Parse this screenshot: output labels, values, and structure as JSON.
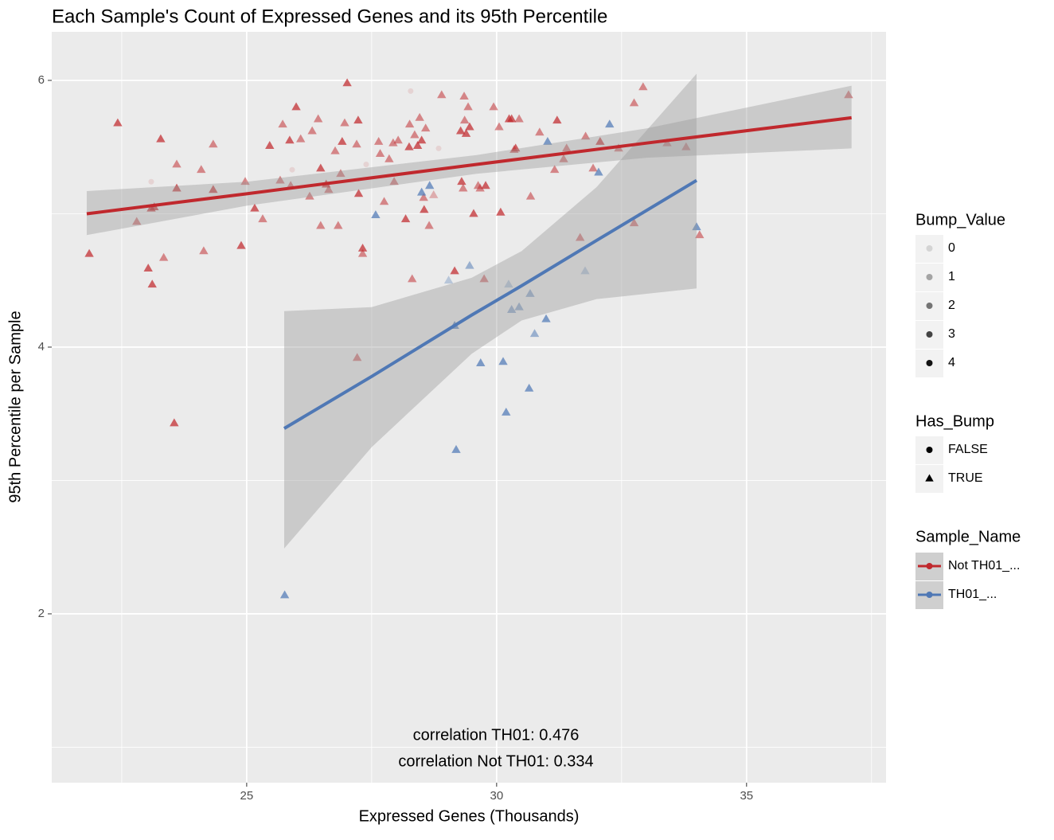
{
  "chart_data": {
    "type": "scatter",
    "title": "Each Sample's Count of Expressed Genes and its 95th Percentile",
    "x_label": "Expressed Genes (Thousands)",
    "y_label": "95th Percentile per Sample",
    "xlim": [
      21.1,
      37.79
    ],
    "ylim": [
      0.734,
      6.364
    ],
    "xticks": [
      25,
      30,
      35
    ],
    "yticks": [
      2,
      4,
      6
    ],
    "x_minor_ticks": [
      22.5,
      27.5,
      32.5,
      37.5
    ],
    "y_minor_ticks": [
      1,
      3,
      5
    ],
    "grid": true,
    "annotations": [
      "correlation TH01: 0.476",
      "correlation Not TH01: 0.334"
    ],
    "legends": [
      {
        "title": "Bump_Value",
        "labels": [
          0,
          1,
          2,
          3,
          4
        ]
      },
      {
        "title": "Has_Bump",
        "labels": [
          "FALSE",
          "TRUE"
        ]
      }
    ],
    "series_legend_title": "Sample_Name",
    "series": [
      {
        "name": "Not TH01_...",
        "color": "#c0282d",
        "x": [
          21.85,
          22.42,
          22.8,
          23.03,
          23.11,
          23.09,
          23.15,
          23.28,
          23.34,
          23.6,
          23.6,
          23.55,
          24.09,
          24.14,
          24.33,
          24.33,
          24.89,
          24.97,
          25.16,
          25.32,
          25.46,
          25.67,
          25.72,
          25.86,
          25.88,
          25.99,
          26.08,
          26.26,
          26.31,
          26.43,
          26.48,
          26.48,
          26.59,
          26.64,
          26.77,
          26.83,
          26.88,
          26.91,
          26.96,
          27.01,
          27.2,
          27.23,
          27.24,
          27.32,
          27.32,
          27.21,
          27.64,
          27.67,
          27.75,
          27.85,
          27.93,
          27.95,
          28.03,
          28.18,
          28.25,
          28.26,
          28.31,
          28.36,
          28.42,
          28.46,
          28.5,
          28.54,
          28.55,
          28.58,
          28.65,
          28.74,
          28.9,
          29.16,
          29.28,
          29.3,
          29.33,
          29.35,
          29.36,
          29.39,
          29.43,
          29.46,
          29.54,
          29.63,
          29.67,
          29.75,
          29.78,
          29.94,
          30.05,
          30.08,
          30.25,
          30.3,
          30.35,
          30.38,
          30.45,
          30.68,
          30.86,
          31.16,
          31.21,
          31.34,
          31.4,
          31.67,
          31.78,
          31.93,
          32.07,
          32.44,
          32.75,
          32.75,
          32.93,
          33.41,
          33.79,
          34.06,
          37.04,
          23.09,
          25.91,
          27.39,
          28.28,
          28.84
        ],
        "values": [
          4.7,
          5.68,
          4.94,
          4.59,
          4.47,
          5.04,
          5.05,
          5.56,
          4.67,
          5.37,
          5.19,
          3.43,
          5.33,
          4.72,
          5.52,
          5.18,
          4.76,
          5.24,
          5.04,
          4.96,
          5.51,
          5.25,
          5.67,
          5.55,
          5.21,
          5.8,
          5.56,
          5.13,
          5.62,
          5.71,
          5.34,
          4.91,
          5.22,
          5.18,
          5.47,
          4.91,
          5.3,
          5.54,
          5.68,
          5.98,
          5.52,
          5.7,
          5.15,
          4.74,
          4.7,
          3.92,
          5.54,
          5.45,
          5.09,
          5.41,
          5.53,
          5.24,
          5.55,
          4.96,
          5.5,
          5.67,
          4.51,
          5.59,
          5.51,
          5.72,
          5.55,
          5.12,
          5.03,
          5.64,
          4.91,
          5.14,
          5.89,
          4.57,
          5.62,
          5.24,
          5.19,
          5.88,
          5.7,
          5.6,
          5.8,
          5.65,
          5.0,
          5.21,
          5.19,
          4.51,
          5.21,
          5.8,
          5.65,
          5.01,
          5.71,
          5.71,
          5.48,
          5.49,
          5.71,
          5.13,
          5.61,
          5.33,
          5.7,
          5.41,
          5.49,
          4.82,
          5.58,
          5.34,
          5.54,
          5.49,
          4.93,
          5.83,
          5.95,
          5.53,
          5.5,
          4.84,
          5.89,
          5.24,
          5.33,
          5.37,
          5.92,
          5.49
        ],
        "bump": [
          3,
          3,
          2,
          3,
          3,
          3,
          3,
          3,
          2,
          2,
          3,
          3,
          2,
          2,
          2,
          3,
          3,
          2,
          3,
          2,
          3,
          2,
          2,
          3,
          2,
          3,
          2,
          2,
          2,
          2,
          3,
          2,
          3,
          2,
          2,
          2,
          2,
          3,
          2,
          3,
          2,
          3,
          3,
          3,
          2,
          2,
          2,
          2,
          2,
          2,
          2,
          2,
          2,
          3,
          3,
          2,
          2,
          2,
          3,
          2,
          3,
          2,
          3,
          2,
          2,
          1,
          2,
          3,
          3,
          3,
          2,
          2,
          2,
          3,
          2,
          3,
          3,
          2,
          2,
          2,
          3,
          2,
          2,
          3,
          3,
          3,
          2,
          3,
          2,
          2,
          2,
          2,
          3,
          2,
          2,
          2,
          2,
          2,
          3,
          2,
          2,
          2,
          2,
          2,
          2,
          2,
          2,
          0,
          0,
          0,
          0,
          0
        ],
        "fit": {
          "x": [
            21.8,
            25,
            29.6,
            33,
            37.1
          ],
          "values": [
            5.0,
            5.15,
            5.37,
            5.53,
            5.72
          ],
          "lower": [
            4.84,
            5.06,
            5.3,
            5.42,
            5.49
          ],
          "upper": [
            5.17,
            5.24,
            5.44,
            5.64,
            5.96
          ]
        }
      },
      {
        "name": "TH01_...",
        "color": "#4f78b5",
        "x": [
          25.76,
          27.58,
          28.5,
          28.66,
          29.04,
          29.16,
          29.19,
          29.46,
          29.68,
          30.13,
          30.19,
          30.24,
          30.3,
          30.45,
          30.65,
          30.67,
          30.76,
          30.99,
          31.02,
          31.77,
          32.04,
          32.26,
          34.0
        ],
        "values": [
          2.14,
          4.99,
          5.16,
          5.21,
          4.5,
          4.16,
          3.23,
          4.61,
          3.88,
          3.89,
          3.51,
          4.47,
          4.28,
          4.3,
          3.69,
          4.4,
          4.1,
          4.21,
          5.54,
          4.57,
          5.31,
          5.67,
          4.9
        ],
        "bump": [
          3,
          3,
          3,
          3,
          1,
          3,
          3,
          2,
          3,
          3,
          3,
          1,
          2,
          2,
          3,
          2,
          2,
          3,
          3,
          1,
          3,
          3,
          3
        ],
        "fit": {
          "x": [
            25.75,
            27.5,
            29.5,
            30.5,
            32,
            34
          ],
          "values": [
            3.39,
            3.78,
            4.24,
            4.46,
            4.8,
            5.25
          ],
          "lower": [
            2.49,
            3.25,
            3.95,
            4.2,
            4.36,
            4.44
          ],
          "upper": [
            4.27,
            4.3,
            4.52,
            4.72,
            5.2,
            6.05
          ]
        }
      }
    ]
  }
}
